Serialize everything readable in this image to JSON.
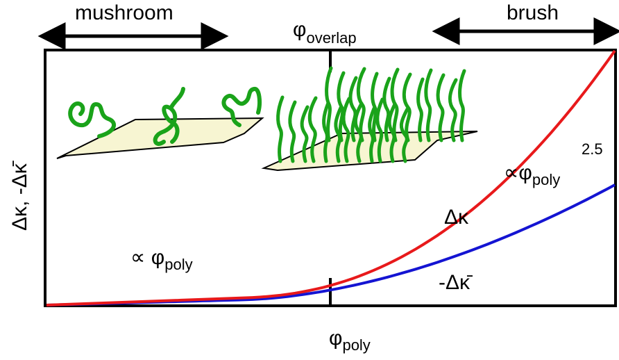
{
  "regimes": {
    "mushroom": "mushroom",
    "brush": "brush",
    "overlap_symbol": "φ",
    "overlap_subscript": "overlap"
  },
  "axes": {
    "y_label": "Δκ, -Δκ̄",
    "x_symbol": "φ",
    "x_subscript": "poly"
  },
  "annotations": {
    "linear": {
      "prefix": "∝ φ",
      "subscript": "poly"
    },
    "power": {
      "prefix": "∝φ",
      "subscript": "poly",
      "exponent": "2.5"
    }
  },
  "curves": {
    "delta_kappa": {
      "label": "Δκ",
      "color": "#e8191b"
    },
    "neg_delta_kappa_bar": {
      "label": "-Δκ̄",
      "color": "#1414d2"
    }
  },
  "colors": {
    "polymer": "#1aa31a",
    "membrane_fill": "#f7f5d2",
    "outline": "#000000"
  },
  "icons": {
    "mushroom": "mushroom-polymer-membrane",
    "brush": "brush-polymer-membrane",
    "arrows": "double-headed-arrow"
  }
}
